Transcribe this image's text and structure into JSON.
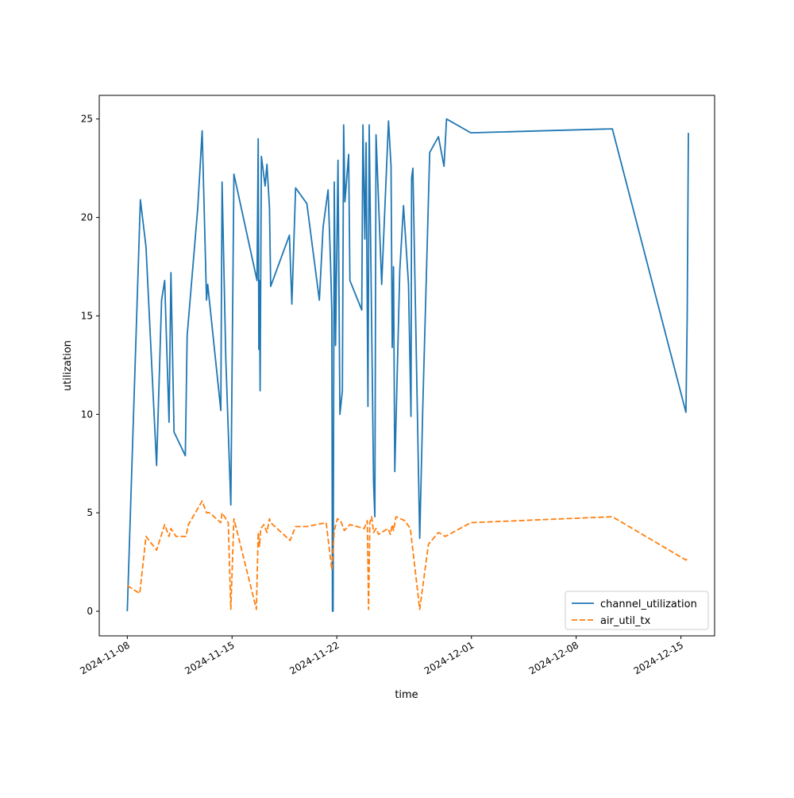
{
  "chart_data": {
    "type": "line",
    "xlabel": "time",
    "ylabel": "utilization",
    "x_axis_type": "date",
    "xlim": [
      "2024-11-06T03:00",
      "2024-12-17T06:00"
    ],
    "ylim": [
      -1.25,
      26.2
    ],
    "x_ticks": [
      "2024-11-08",
      "2024-11-15",
      "2024-11-22",
      "2024-12-01",
      "2024-12-08",
      "2024-12-15"
    ],
    "y_ticks": [
      0,
      5,
      10,
      15,
      20,
      25
    ],
    "grid": false,
    "legend_position": "lower-right",
    "colors": {
      "channel_utilization": "#1f77b4",
      "air_util_tx": "#ff7f0e"
    },
    "series": [
      {
        "name": "channel_utilization",
        "style": "solid",
        "points": [
          [
            "2024-11-08T00:00",
            0.0
          ],
          [
            "2024-11-08T21:00",
            20.9
          ],
          [
            "2024-11-09T06:00",
            18.5
          ],
          [
            "2024-11-09T23:00",
            7.4
          ],
          [
            "2024-11-10T07:00",
            15.8
          ],
          [
            "2024-11-10T12:00",
            16.8
          ],
          [
            "2024-11-10T19:00",
            9.6
          ],
          [
            "2024-11-10T22:00",
            17.2
          ],
          [
            "2024-11-11T03:00",
            9.1
          ],
          [
            "2024-11-11T21:00",
            7.9
          ],
          [
            "2024-11-12T00:00",
            14.0
          ],
          [
            "2024-11-12T17:00",
            20.5
          ],
          [
            "2024-11-13T00:00",
            24.4
          ],
          [
            "2024-11-13T07:00",
            15.8
          ],
          [
            "2024-11-13T09:00",
            16.6
          ],
          [
            "2024-11-14T06:00",
            10.2
          ],
          [
            "2024-11-14T08:00",
            21.8
          ],
          [
            "2024-11-14T14:00",
            12.8
          ],
          [
            "2024-11-14T22:00",
            5.4
          ],
          [
            "2024-11-15T03:00",
            22.2
          ],
          [
            "2024-11-16T16:00",
            16.8
          ],
          [
            "2024-11-16T18:00",
            24.0
          ],
          [
            "2024-11-16T19:00",
            13.3
          ],
          [
            "2024-11-16T20:00",
            16.8
          ],
          [
            "2024-11-16T21:00",
            11.2
          ],
          [
            "2024-11-16T23:00",
            23.1
          ],
          [
            "2024-11-17T05:00",
            21.6
          ],
          [
            "2024-11-17T08:00",
            22.7
          ],
          [
            "2024-11-17T12:00",
            20.5
          ],
          [
            "2024-11-17T14:00",
            16.5
          ],
          [
            "2024-11-18T20:00",
            19.1
          ],
          [
            "2024-11-19T00:00",
            15.6
          ],
          [
            "2024-11-19T06:00",
            21.5
          ],
          [
            "2024-11-20T00:00",
            20.7
          ],
          [
            "2024-11-20T20:00",
            15.8
          ],
          [
            "2024-11-21T02:00",
            19.5
          ],
          [
            "2024-11-21T10:00",
            21.4
          ],
          [
            "2024-11-21T14:00",
            17.7
          ],
          [
            "2024-11-21T16:00",
            15.2
          ],
          [
            "2024-11-21T17:00",
            0.0
          ],
          [
            "2024-11-21T18:00",
            0.0
          ],
          [
            "2024-11-21T20:00",
            21.8
          ],
          [
            "2024-11-21T22:00",
            13.5
          ],
          [
            "2024-11-22T02:00",
            22.9
          ],
          [
            "2024-11-22T05:00",
            10.0
          ],
          [
            "2024-11-22T09:00",
            11.2
          ],
          [
            "2024-11-22T11:00",
            24.7
          ],
          [
            "2024-11-22T13:00",
            20.8
          ],
          [
            "2024-11-22T19:00",
            23.2
          ],
          [
            "2024-11-22T21:00",
            16.8
          ],
          [
            "2024-11-23T16:00",
            15.3
          ],
          [
            "2024-11-23T18:00",
            24.7
          ],
          [
            "2024-11-23T21:00",
            18.9
          ],
          [
            "2024-11-23T23:00",
            23.8
          ],
          [
            "2024-11-24T02:00",
            10.4
          ],
          [
            "2024-11-24T04:00",
            24.7
          ],
          [
            "2024-11-24T11:00",
            6.5
          ],
          [
            "2024-11-24T13:00",
            4.8
          ],
          [
            "2024-11-24T15:00",
            24.2
          ],
          [
            "2024-11-25T00:00",
            16.6
          ],
          [
            "2024-11-25T11:00",
            24.9
          ],
          [
            "2024-11-25T15:00",
            22.6
          ],
          [
            "2024-11-25T17:00",
            13.4
          ],
          [
            "2024-11-25T19:00",
            17.5
          ],
          [
            "2024-11-25T21:00",
            7.1
          ],
          [
            "2024-11-26T05:00",
            17.3
          ],
          [
            "2024-11-26T11:00",
            20.6
          ],
          [
            "2024-11-26T19:00",
            16.6
          ],
          [
            "2024-11-26T23:00",
            9.9
          ],
          [
            "2024-11-27T00:00",
            22.0
          ],
          [
            "2024-11-27T02:00",
            22.5
          ],
          [
            "2024-11-27T13:00",
            3.7
          ],
          [
            "2024-11-27T18:00",
            10.4
          ],
          [
            "2024-11-28T05:00",
            23.3
          ],
          [
            "2024-11-28T19:00",
            24.1
          ],
          [
            "2024-11-29T04:00",
            22.6
          ],
          [
            "2024-11-29T08:00",
            25.0
          ],
          [
            "2024-11-30T23:00",
            24.3
          ],
          [
            "2024-12-10T10:00",
            24.5
          ],
          [
            "2024-12-15T08:00",
            10.1
          ],
          [
            "2024-12-15T10:00",
            15.0
          ],
          [
            "2024-12-15T12:00",
            24.3
          ]
        ]
      },
      {
        "name": "air_util_tx",
        "style": "dashed",
        "points": [
          [
            "2024-11-08T00:00",
            1.3
          ],
          [
            "2024-11-08T20:00",
            0.9
          ],
          [
            "2024-11-09T06:00",
            3.8
          ],
          [
            "2024-11-09T23:00",
            3.1
          ],
          [
            "2024-11-10T12:00",
            4.4
          ],
          [
            "2024-11-10T19:00",
            3.8
          ],
          [
            "2024-11-10T22:00",
            4.2
          ],
          [
            "2024-11-11T06:00",
            3.8
          ],
          [
            "2024-11-11T22:00",
            3.8
          ],
          [
            "2024-11-12T02:00",
            4.4
          ],
          [
            "2024-11-13T00:00",
            5.6
          ],
          [
            "2024-11-13T07:00",
            5.0
          ],
          [
            "2024-11-13T12:00",
            5.0
          ],
          [
            "2024-11-14T06:00",
            4.5
          ],
          [
            "2024-11-14T08:00",
            5.0
          ],
          [
            "2024-11-14T18:00",
            4.5
          ],
          [
            "2024-11-14T22:00",
            0.1
          ],
          [
            "2024-11-15T03:00",
            4.7
          ],
          [
            "2024-11-16T15:00",
            0.1
          ],
          [
            "2024-11-16T18:00",
            4.0
          ],
          [
            "2024-11-16T20:00",
            3.3
          ],
          [
            "2024-11-16T22:00",
            4.2
          ],
          [
            "2024-11-17T03:00",
            4.4
          ],
          [
            "2024-11-17T08:00",
            4.0
          ],
          [
            "2024-11-17T12:00",
            4.7
          ],
          [
            "2024-11-17T14:00",
            4.5
          ],
          [
            "2024-11-18T21:00",
            3.6
          ],
          [
            "2024-11-19T06:00",
            4.3
          ],
          [
            "2024-11-20T00:00",
            4.3
          ],
          [
            "2024-11-21T07:00",
            4.5
          ],
          [
            "2024-11-21T16:00",
            2.1
          ],
          [
            "2024-11-21T20:00",
            4.1
          ],
          [
            "2024-11-22T01:00",
            4.7
          ],
          [
            "2024-11-22T06:00",
            4.6
          ],
          [
            "2024-11-22T12:00",
            4.1
          ],
          [
            "2024-11-22T21:00",
            4.4
          ],
          [
            "2024-11-23T20:00",
            4.2
          ],
          [
            "2024-11-24T01:00",
            4.6
          ],
          [
            "2024-11-24T03:00",
            0.1
          ],
          [
            "2024-11-24T05:00",
            4.5
          ],
          [
            "2024-11-24T08:00",
            4.8
          ],
          [
            "2024-11-24T11:00",
            4.0
          ],
          [
            "2024-11-24T15:00",
            4.2
          ],
          [
            "2024-11-24T19:00",
            3.9
          ],
          [
            "2024-11-25T10:00",
            4.2
          ],
          [
            "2024-11-25T14:00",
            3.9
          ],
          [
            "2024-11-25T17:00",
            4.4
          ],
          [
            "2024-11-25T19:00",
            4.1
          ],
          [
            "2024-11-25T23:00",
            4.8
          ],
          [
            "2024-11-26T13:00",
            4.6
          ],
          [
            "2024-11-26T22:00",
            4.2
          ],
          [
            "2024-11-27T13:00",
            0.1
          ],
          [
            "2024-11-28T03:00",
            3.4
          ],
          [
            "2024-11-28T19:00",
            4.0
          ],
          [
            "2024-11-29T06:00",
            3.8
          ],
          [
            "2024-11-30T23:00",
            4.5
          ],
          [
            "2024-12-10T10:00",
            4.8
          ],
          [
            "2024-12-15T08:00",
            2.6
          ],
          [
            "2024-12-15T12:00",
            2.7
          ]
        ]
      }
    ]
  }
}
